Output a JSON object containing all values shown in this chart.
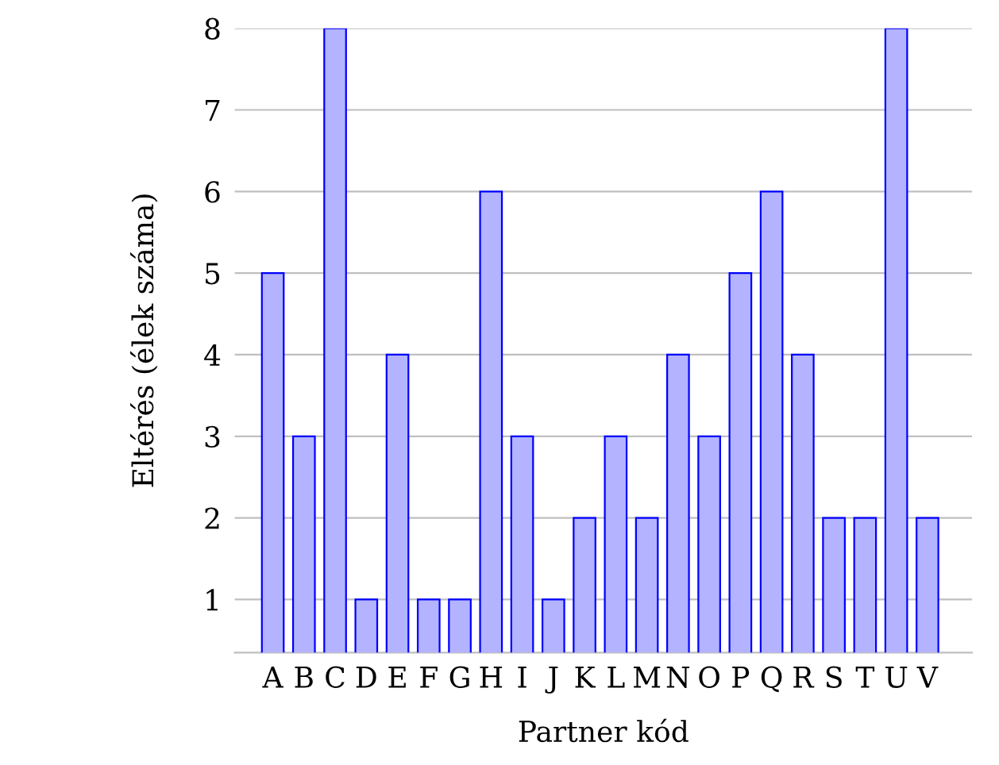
{
  "chart_data": {
    "type": "bar",
    "xlabel": "Partner kód",
    "ylabel": "Eltérés (élek száma)",
    "categories": [
      "A",
      "B",
      "C",
      "D",
      "E",
      "F",
      "G",
      "H",
      "I",
      "J",
      "K",
      "L",
      "M",
      "N",
      "O",
      "P",
      "Q",
      "R",
      "S",
      "T",
      "U",
      "V"
    ],
    "values": [
      5,
      3,
      8,
      1,
      4,
      1,
      1,
      6,
      3,
      1,
      2,
      3,
      2,
      4,
      3,
      5,
      6,
      4,
      2,
      2,
      8,
      2
    ],
    "color": "#b3b3ff",
    "ylim": [
      0.35,
      8
    ],
    "yticks": [
      1,
      2,
      3,
      4,
      5,
      6,
      7,
      8
    ],
    "grid": "y",
    "legend": false
  }
}
